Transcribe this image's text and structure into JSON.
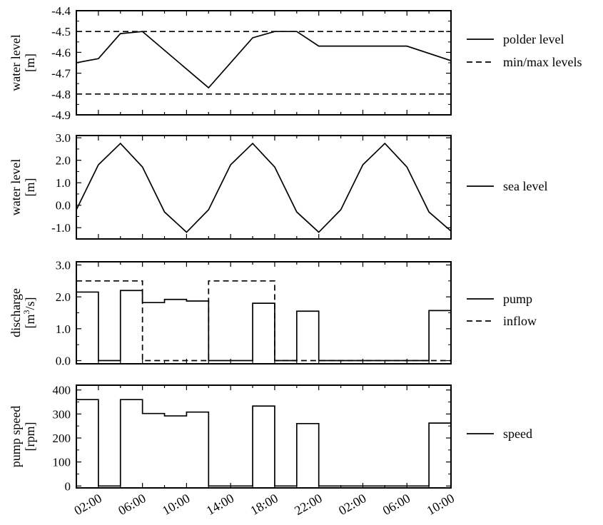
{
  "chart_data": [
    {
      "type": "line",
      "ylabel_line1": "water level",
      "ylabel_line2": "[m]",
      "ylim": [
        -4.9,
        -4.4
      ],
      "yticks": [
        -4.4,
        -4.5,
        -4.6,
        -4.7,
        -4.8,
        -4.9
      ],
      "ytick_labels": [
        "-4.4",
        "-4.5",
        "-4.6",
        "-4.7",
        "-4.8",
        "-4.9"
      ],
      "series": [
        {
          "name": "polder level",
          "style": "solid",
          "x": [
            0,
            2,
            4,
            6,
            12,
            16,
            18,
            20,
            22,
            30,
            34
          ],
          "y": [
            -4.65,
            -4.63,
            -4.51,
            -4.5,
            -4.77,
            -4.53,
            -4.5,
            -4.5,
            -4.57,
            -4.57,
            -4.64
          ]
        },
        {
          "name": "min/max levels",
          "style": "dashed",
          "lines": [
            -4.5,
            -4.8
          ]
        }
      ]
    },
    {
      "type": "line",
      "ylabel_line1": "water level",
      "ylabel_line2": "[m]",
      "ylim": [
        -1.5,
        3.1
      ],
      "yticks": [
        3.0,
        2.0,
        1.0,
        0.0,
        -1.0
      ],
      "ytick_labels": [
        "3.0",
        "2.0",
        "1.0",
        "0.0",
        "-1.0"
      ],
      "series": [
        {
          "name": "sea level",
          "style": "solid",
          "x": [
            0,
            2,
            4,
            6,
            8,
            10,
            12,
            14,
            16,
            18,
            20,
            22,
            24,
            26,
            28,
            30,
            32,
            34
          ],
          "y": [
            -0.2,
            1.8,
            2.75,
            1.7,
            -0.3,
            -1.2,
            -0.2,
            1.8,
            2.75,
            1.7,
            -0.3,
            -1.2,
            -0.2,
            1.8,
            2.75,
            1.7,
            -0.3,
            -1.15
          ]
        }
      ]
    },
    {
      "type": "step",
      "ylabel_line1": "discharge",
      "ylabel_line2": "[m",
      "ylabel_sup": "3",
      "ylabel_line2_end": "/s]",
      "ylim": [
        -0.1,
        3.1
      ],
      "yticks": [
        3.0,
        2.0,
        1.0,
        0.0
      ],
      "ytick_labels": [
        "3.0",
        "2.0",
        "1.0",
        "0.0"
      ],
      "series": [
        {
          "name": "pump",
          "style": "solid",
          "edges": [
            0,
            2,
            4,
            6,
            8,
            10,
            12,
            16,
            18,
            20,
            22,
            32,
            34
          ],
          "values": [
            2.15,
            0.0,
            2.2,
            1.82,
            1.92,
            1.87,
            0.0,
            1.8,
            0.0,
            1.55,
            0.0,
            1.57
          ]
        },
        {
          "name": "inflow",
          "style": "dashed",
          "edges": [
            0,
            6,
            12,
            18,
            34
          ],
          "values": [
            2.5,
            0.0,
            2.5,
            0.0
          ]
        }
      ]
    },
    {
      "type": "step",
      "ylabel_line1": "pump speed",
      "ylabel_line2": "[rpm]",
      "ylim": [
        -8,
        420
      ],
      "yticks": [
        400,
        300,
        200,
        100,
        0
      ],
      "ytick_labels": [
        "400",
        "300",
        "200",
        "100",
        "0"
      ],
      "xtick_labels": [
        "02:00",
        "06:00",
        "10:00",
        "14:00",
        "18:00",
        "22:00",
        "02:00",
        "06:00",
        "10:00"
      ],
      "xtick_positions": [
        2,
        6,
        10,
        14,
        18,
        22,
        26,
        30,
        34
      ],
      "series": [
        {
          "name": "speed",
          "style": "solid",
          "edges": [
            0,
            2,
            4,
            6,
            8,
            10,
            12,
            16,
            18,
            20,
            22,
            32,
            34
          ],
          "values": [
            360,
            0,
            360,
            302,
            292,
            308,
            0,
            333,
            0,
            260,
            0,
            262
          ]
        }
      ]
    }
  ]
}
